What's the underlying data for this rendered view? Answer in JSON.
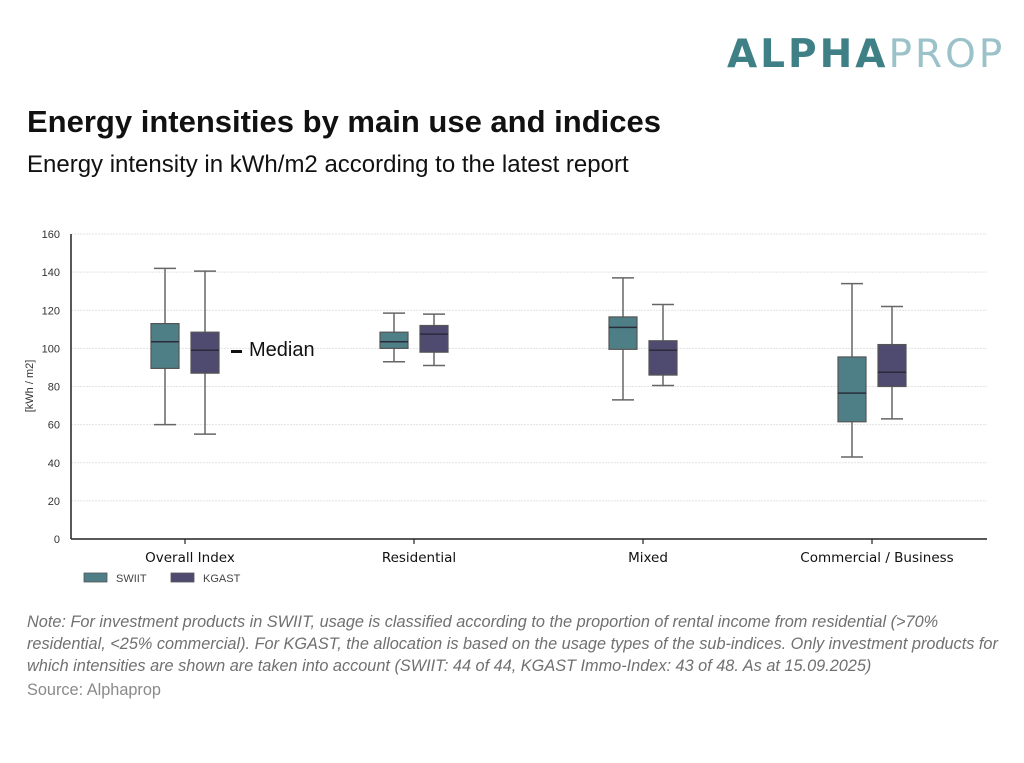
{
  "brand": {
    "logo_part1": "ALPHA",
    "logo_part2": "PROP",
    "colors": {
      "primary": "#3f7f86",
      "secondary": "#9cc2c9"
    }
  },
  "header": {
    "title": "Energy intensities by main use and indices",
    "subtitle": "Energy intensity in kWh/m2 according to the latest report"
  },
  "annotation": {
    "median_label": "Median"
  },
  "footer": {
    "note": "Note: For investment products in SWIIT, usage is classified according to the proportion of rental income from residential (>70% residential, <25% commercial). For KGAST, the allocation is based on the usage types of the sub-indices. Only investment products for which intensities are shown are taken into account (SWIIT: 44 of 44, KGAST Immo-Index: 43 of 48. As at 15.09.2025)",
    "source": "Source: Alphaprop"
  },
  "chart_data": {
    "type": "boxplot",
    "title": "Energy intensities by main use and indices",
    "xlabel": "",
    "ylabel": "[kWh / m2]",
    "ylim": [
      0,
      160
    ],
    "yticks": [
      0,
      20,
      40,
      60,
      80,
      100,
      120,
      140,
      160
    ],
    "grid": true,
    "legend_position": "bottom-left",
    "categories": [
      "Overall Index",
      "Residential",
      "Mixed",
      "Commercial / Business"
    ],
    "series": [
      {
        "name": "SWIIT",
        "color": "#4e7f86",
        "boxes": [
          {
            "whisker_low": 60,
            "q1": 89.5,
            "median": 103.5,
            "q3": 113,
            "whisker_high": 142
          },
          {
            "whisker_low": 93,
            "q1": 100,
            "median": 103.5,
            "q3": 108.5,
            "whisker_high": 118.5
          },
          {
            "whisker_low": 73,
            "q1": 99.5,
            "median": 111,
            "q3": 116.5,
            "whisker_high": 137
          },
          {
            "whisker_low": 43,
            "q1": 61.5,
            "median": 76.5,
            "q3": 95.5,
            "whisker_high": 134
          }
        ]
      },
      {
        "name": "KGAST",
        "color": "#4f4a70",
        "boxes": [
          {
            "whisker_low": 55,
            "q1": 87,
            "median": 99,
            "q3": 108.5,
            "whisker_high": 140.5
          },
          {
            "whisker_low": 91,
            "q1": 98,
            "median": 107.5,
            "q3": 112,
            "whisker_high": 118
          },
          {
            "whisker_low": 80.5,
            "q1": 86,
            "median": 99,
            "q3": 104,
            "whisker_high": 123
          },
          {
            "whisker_low": 63,
            "q1": 80,
            "median": 87.5,
            "q3": 102,
            "whisker_high": 122
          }
        ]
      }
    ]
  }
}
